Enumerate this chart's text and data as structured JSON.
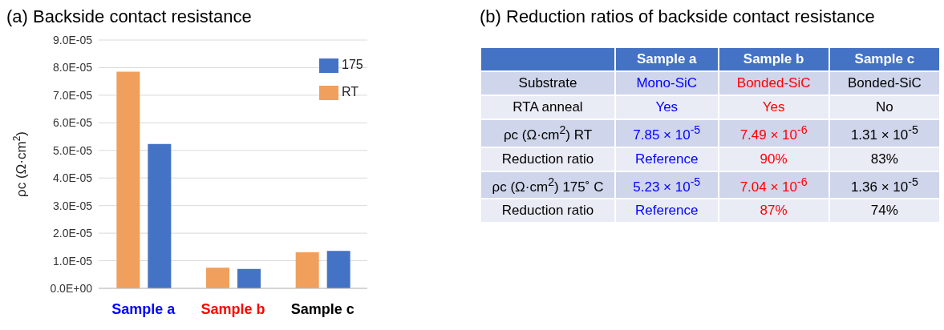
{
  "chart_data": [
    {
      "type": "bar",
      "title": "(a) Backside contact resistance",
      "ylabel": "ρc (Ω·cm$^{2}$)",
      "categories": [
        "Sample a",
        "Sample b",
        "Sample c"
      ],
      "series": [
        {
          "name": "RT",
          "color": "#f19f5c",
          "values": [
            7.85e-05,
            7.49e-06,
            1.31e-05
          ]
        },
        {
          "name": "175",
          "color": "#4472c4",
          "values": [
            5.23e-05,
            7.04e-06,
            1.36e-05
          ]
        }
      ],
      "ylim": [
        0,
        9e-05
      ],
      "yticks": [
        {
          "value": 0,
          "label": "0.0E+00"
        },
        {
          "value": 1e-05,
          "label": "1.0E-05"
        },
        {
          "value": 2e-05,
          "label": "2.0E-05"
        },
        {
          "value": 3e-05,
          "label": "3.0E-05"
        },
        {
          "value": 4e-05,
          "label": "4.0E-05"
        },
        {
          "value": 5e-05,
          "label": "5.0E-05"
        },
        {
          "value": 6e-05,
          "label": "6.0E-05"
        },
        {
          "value": 7e-05,
          "label": "7.0E-05"
        },
        {
          "value": 8e-05,
          "label": "8.0E-05"
        },
        {
          "value": 9e-05,
          "label": "9.0E-05"
        }
      ],
      "grid": "y",
      "legend": "top right"
    },
    {
      "type": "other",
      "title": "(b) Reduction ratios of backside contact resistance",
      "categories": [
        "Sample a",
        "Sample b",
        "Sample c"
      ],
      "y_categories": [
        "Substrate",
        "RTA anneal",
        "ρc (Ω·cm$^{2}$) RT",
        "Reduction ratio",
        "ρc (Ω·cm$^{2}$) 175˚ C",
        "Reduction ratio"
      ],
      "cell_labels": [
        [
          "Mono-SiC",
          "Bonded-SiC",
          "Bonded-SiC"
        ],
        [
          "Yes",
          "Yes",
          "No"
        ],
        [
          "7.85 × 10$^{-5}$",
          "7.49 × 10$^{-6}$",
          "1.31 × 10$^{-5}$"
        ],
        [
          "Reference",
          "90%",
          "83%"
        ],
        [
          "5.23 × 10$^{-5}$",
          "7.04 × 10$^{-6}$",
          "1.36 × 10$^{-5}$"
        ],
        [
          "Reference",
          "87%",
          "74%"
        ]
      ]
    }
  ]
}
